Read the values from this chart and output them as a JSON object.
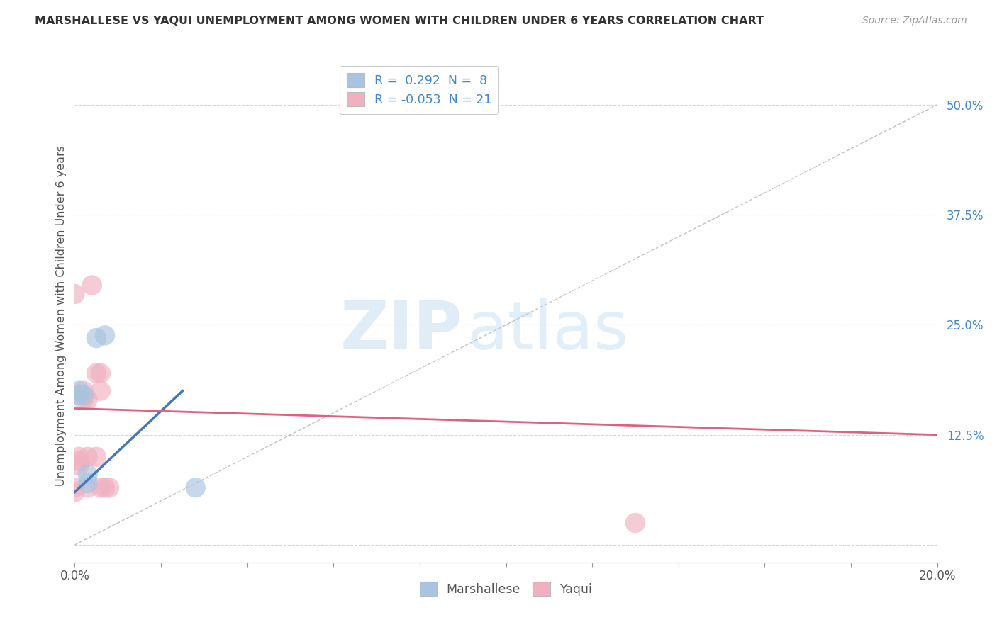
{
  "title": "MARSHALLESE VS YAQUI UNEMPLOYMENT AMONG WOMEN WITH CHILDREN UNDER 6 YEARS CORRELATION CHART",
  "source": "Source: ZipAtlas.com",
  "ylabel": "Unemployment Among Women with Children Under 6 years",
  "xlim": [
    0,
    0.2
  ],
  "ylim": [
    -0.02,
    0.54
  ],
  "yticks": [
    0.0,
    0.125,
    0.25,
    0.375,
    0.5
  ],
  "ytick_labels": [
    "",
    "12.5%",
    "25.0%",
    "37.5%",
    "50.0%"
  ],
  "xticks": [
    0.0,
    0.02,
    0.04,
    0.06,
    0.08,
    0.1,
    0.12,
    0.14,
    0.16,
    0.18,
    0.2
  ],
  "xtick_labels": [
    "0.0%",
    "",
    "",
    "",
    "",
    "",
    "",
    "",
    "",
    "",
    "20.0%"
  ],
  "grid_color": "#cccccc",
  "watermark_zip": "ZIP",
  "watermark_atlas": "atlas",
  "marshallese_color": "#a8c4e0",
  "yaqui_color": "#f0b0c0",
  "marshallese_R": 0.292,
  "marshallese_N": 8,
  "yaqui_R": -0.053,
  "yaqui_N": 21,
  "marshallese_points": [
    [
      0.005,
      0.235
    ],
    [
      0.007,
      0.238
    ],
    [
      0.001,
      0.175
    ],
    [
      0.001,
      0.17
    ],
    [
      0.002,
      0.17
    ],
    [
      0.003,
      0.08
    ],
    [
      0.003,
      0.07
    ],
    [
      0.028,
      0.065
    ]
  ],
  "yaqui_points": [
    [
      0.0,
      0.065
    ],
    [
      0.0,
      0.06
    ],
    [
      0.001,
      0.1
    ],
    [
      0.001,
      0.095
    ],
    [
      0.001,
      0.09
    ],
    [
      0.002,
      0.175
    ],
    [
      0.002,
      0.17
    ],
    [
      0.002,
      0.165
    ],
    [
      0.003,
      0.165
    ],
    [
      0.003,
      0.1
    ],
    [
      0.003,
      0.065
    ],
    [
      0.004,
      0.295
    ],
    [
      0.005,
      0.1
    ],
    [
      0.005,
      0.195
    ],
    [
      0.006,
      0.175
    ],
    [
      0.006,
      0.195
    ],
    [
      0.006,
      0.065
    ],
    [
      0.007,
      0.065
    ],
    [
      0.008,
      0.065
    ],
    [
      0.13,
      0.025
    ],
    [
      0.0,
      0.285
    ]
  ],
  "blue_line_color": "#4477bb",
  "pink_line_color": "#e06080",
  "diag_line_color": "#aaaaaa",
  "legend_blue_label": "R =  0.292  N =  8",
  "legend_pink_label": "R = -0.053  N = 21",
  "legend_blue_face": "#a8c4e0",
  "legend_pink_face": "#f0b0c0",
  "blue_line_x0": 0.0,
  "blue_line_y0": 0.06,
  "blue_line_x1": 0.025,
  "blue_line_y1": 0.175,
  "pink_line_x0": 0.0,
  "pink_line_y0": 0.155,
  "pink_line_x1": 0.2,
  "pink_line_y1": 0.125
}
